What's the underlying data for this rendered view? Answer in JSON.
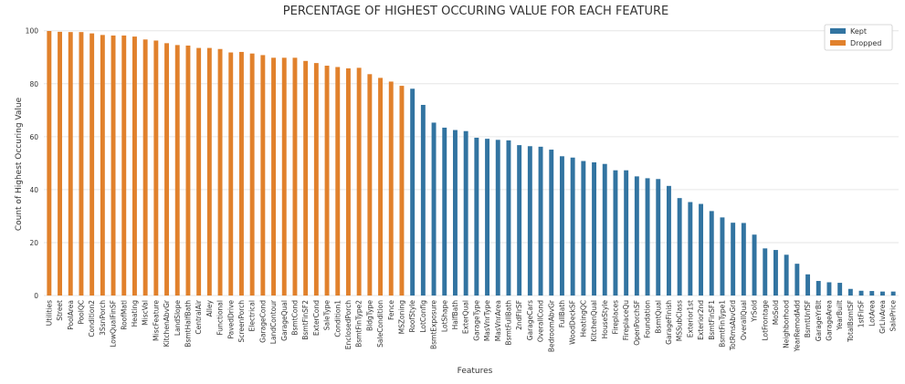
{
  "chart_data": {
    "type": "bar",
    "title": "PERCENTAGE OF HIGHEST OCCURING VALUE FOR EACH FEATURE",
    "xlabel": "Features",
    "ylabel": "Count of Highest Occuring Value",
    "ylim": [
      0,
      103
    ],
    "yticks": [
      "0",
      "20",
      "40",
      "60",
      "80",
      "100"
    ],
    "grid": true,
    "legend_position": "top-right",
    "series": [
      {
        "name": "Kept",
        "color": "#3274a1"
      },
      {
        "name": "Dropped",
        "color": "#e1812c"
      }
    ],
    "categories": [
      "Utilities",
      "Street",
      "PoolArea",
      "PoolQC",
      "Condition2",
      "3SsnPorch",
      "LowQualFinSF",
      "RoofMatl",
      "Heating",
      "MiscVal",
      "MiscFeature",
      "KitchenAbvGr",
      "LandSlope",
      "BsmtHalfBath",
      "CentralAir",
      "Alley",
      "Functional",
      "PavedDrive",
      "ScreenPorch",
      "Electrical",
      "GarageCond",
      "LandContour",
      "GarageQual",
      "BsmtCond",
      "BsmtFinSF2",
      "ExterCond",
      "SaleType",
      "Condition1",
      "EnclosedPorch",
      "BsmtFinType2",
      "BldgType",
      "SaleCondition",
      "Fence",
      "MSZoning",
      "RoofStyle",
      "LotConfig",
      "BsmtExposure",
      "LotShape",
      "HalfBath",
      "ExterQual",
      "GarageType",
      "MasVnrType",
      "MasVnrArea",
      "BsmtFullBath",
      "2ndFlrSF",
      "GarageCars",
      "OverallCond",
      "BedroomAbvGr",
      "FullBath",
      "WoodDeckSF",
      "HeatingQC",
      "KitchenQual",
      "HouseStyle",
      "Fireplaces",
      "FireplaceQu",
      "OpenPorchSF",
      "Foundation",
      "BsmtQual",
      "GarageFinish",
      "MSSubClass",
      "Exterior1st",
      "Exterior2nd",
      "BsmtFinSF1",
      "BsmtFinType1",
      "TotRmsAbvGrd",
      "OverallQual",
      "YrSold",
      "LotFrontage",
      "MoSold",
      "Neighborhood",
      "YearRemodAdd",
      "BsmtUnfSF",
      "GarageYrBlt",
      "GarageArea",
      "YearBuilt",
      "TotalBsmtSF",
      "1stFlrSF",
      "LotArea",
      "GrLivArea",
      "SalePrice"
    ],
    "values": [
      99.9,
      99.6,
      99.5,
      99.5,
      99.0,
      98.4,
      98.2,
      98.2,
      97.8,
      96.7,
      96.3,
      95.3,
      94.6,
      94.4,
      93.5,
      93.5,
      93.1,
      91.8,
      92.0,
      91.4,
      90.8,
      89.8,
      89.8,
      89.8,
      88.6,
      87.8,
      86.8,
      86.3,
      85.8,
      86.0,
      83.6,
      82.2,
      80.8,
      79.2,
      78.1,
      72.0,
      65.3,
      63.4,
      62.5,
      62.1,
      59.6,
      59.2,
      58.8,
      58.6,
      56.8,
      56.4,
      56.2,
      55.1,
      52.6,
      52.1,
      50.8,
      50.3,
      49.7,
      47.3,
      47.3,
      45.0,
      44.3,
      44.0,
      41.4,
      36.8,
      35.3,
      34.6,
      31.9,
      29.5,
      27.5,
      27.4,
      23.0,
      17.8,
      17.2,
      15.4,
      12.0,
      8.0,
      5.5,
      5.0,
      4.8,
      2.5,
      1.8,
      1.7,
      1.5,
      1.5
    ],
    "category_series": [
      "Dropped",
      "Dropped",
      "Dropped",
      "Dropped",
      "Dropped",
      "Dropped",
      "Dropped",
      "Dropped",
      "Dropped",
      "Dropped",
      "Dropped",
      "Dropped",
      "Dropped",
      "Dropped",
      "Dropped",
      "Dropped",
      "Dropped",
      "Dropped",
      "Dropped",
      "Dropped",
      "Dropped",
      "Dropped",
      "Dropped",
      "Dropped",
      "Dropped",
      "Dropped",
      "Dropped",
      "Dropped",
      "Dropped",
      "Dropped",
      "Dropped",
      "Dropped",
      "Dropped",
      "Dropped",
      "Kept",
      "Kept",
      "Kept",
      "Kept",
      "Kept",
      "Kept",
      "Kept",
      "Kept",
      "Kept",
      "Kept",
      "Kept",
      "Kept",
      "Kept",
      "Kept",
      "Kept",
      "Kept",
      "Kept",
      "Kept",
      "Kept",
      "Kept",
      "Kept",
      "Kept",
      "Kept",
      "Kept",
      "Kept",
      "Kept",
      "Kept",
      "Kept",
      "Kept",
      "Kept",
      "Kept",
      "Kept",
      "Kept",
      "Kept",
      "Kept",
      "Kept",
      "Kept",
      "Kept",
      "Kept",
      "Kept",
      "Kept",
      "Kept",
      "Kept",
      "Kept",
      "Kept",
      "Kept"
    ]
  }
}
